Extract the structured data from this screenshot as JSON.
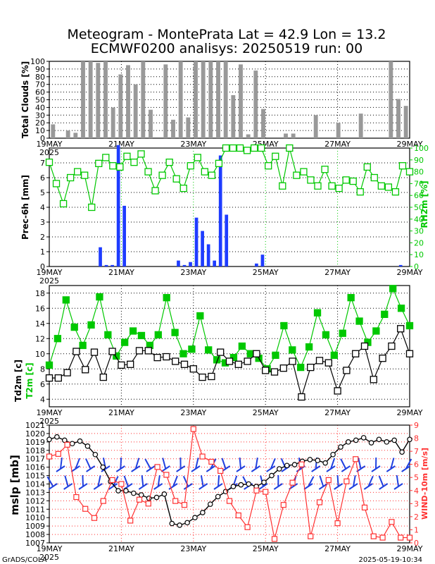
{
  "title_line1": "Meteogram - MontePrata Lat = 42.9 Lon = 13.2",
  "title_line2": "ECMWF0200 analisys: 20250519 run: 00",
  "footer_left": "GrADS/COLA",
  "footer_right": "2025-05-19-10:34",
  "colors": {
    "green": "#00c800",
    "blue": "#1e3cff",
    "red": "#ff3030",
    "grey": "#999999",
    "dblue": "#2040e0"
  },
  "x_ticks": [
    "19MAY",
    "21MAY",
    "23MAY",
    "25MAY",
    "27MAY",
    "29MAY"
  ],
  "year_label": "2025",
  "chart_data": [
    {
      "type": "bar",
      "ylabel": "Total Clouds [%]",
      "ylim": [
        0,
        100
      ],
      "y_ticks": [
        0,
        10,
        20,
        30,
        40,
        50,
        60,
        70,
        80,
        90,
        100
      ],
      "values": [
        18,
        0,
        10,
        7,
        100,
        100,
        98,
        100,
        40,
        83,
        95,
        70,
        100,
        37,
        0,
        96,
        24,
        100,
        27,
        100,
        100,
        100,
        100,
        100,
        56,
        96,
        5,
        88,
        38,
        0,
        0,
        6,
        6,
        0,
        0,
        30,
        0,
        0,
        20,
        0,
        0,
        32,
        0,
        0,
        0,
        100,
        51,
        42
      ]
    },
    {
      "type": "bar",
      "ylabel": "Prec-6h [mm]",
      "ylim": [
        0,
        8
      ],
      "y_ticks": [
        0,
        1,
        2,
        3,
        4,
        5,
        6,
        7
      ],
      "values": [
        0,
        0,
        0,
        0,
        0,
        0,
        0,
        0,
        1.3,
        0.1,
        0.1,
        8.2,
        4.1,
        0,
        0,
        0,
        0,
        0,
        0,
        0,
        0,
        0.4,
        0.1,
        0.3,
        3.3,
        2.4,
        1.5,
        0.4,
        7.5,
        3.5,
        0,
        0,
        0,
        0,
        0.2,
        0.8,
        0,
        0,
        0,
        0,
        0,
        0,
        0,
        0,
        0,
        0,
        0,
        0,
        0,
        0,
        0,
        0,
        0,
        0,
        0,
        0,
        0,
        0,
        0.1,
        0
      ],
      "y2label": "RH2m [%]",
      "y2lim": [
        0,
        100
      ],
      "y2_ticks": [
        0,
        10,
        20,
        30,
        40,
        50,
        60,
        70,
        80,
        90,
        100
      ],
      "rh_values": [
        88,
        70,
        53,
        75,
        80,
        77,
        50,
        87,
        92,
        85,
        84,
        93,
        88,
        95,
        80,
        64,
        77,
        88,
        74,
        66,
        85,
        92,
        80,
        77,
        87,
        100,
        100,
        100,
        98,
        100,
        100,
        85,
        93,
        68,
        100,
        77,
        80,
        73,
        68,
        82,
        68,
        66,
        73,
        72,
        63,
        84,
        75,
        68,
        67,
        63,
        85,
        80
      ]
    },
    {
      "type": "line",
      "ylabel": "Td2m [c]",
      "y2label": "T2m [c]",
      "ylim": [
        3,
        19
      ],
      "y_ticks": [
        4,
        6,
        8,
        10,
        12,
        14,
        16,
        18
      ],
      "series": [
        {
          "name": "T2m [c]",
          "values": [
            8.5,
            12,
            17.1,
            13.5,
            11.1,
            13.8,
            17.5,
            12.5,
            9.7,
            11.5,
            13,
            12.4,
            11.1,
            12.5,
            17.4,
            12.8,
            10,
            10.6,
            15,
            10.5,
            9.2,
            8.8,
            9.5,
            11,
            10,
            9.4,
            8,
            9.8,
            13.7,
            10.5,
            8.2,
            10.9,
            15.4,
            12.5,
            9.8,
            12.7,
            17.4,
            14.3,
            11.5,
            13,
            15.2,
            18.6,
            16,
            13.7
          ]
        },
        {
          "name": "Td2m [c]",
          "values": [
            6.8,
            6.8,
            7.5,
            10.3,
            7.9,
            10.2,
            6.9,
            10.3,
            8.5,
            8.6,
            10.4,
            10.4,
            9.5,
            9.6,
            9,
            8.6,
            8,
            6.9,
            7,
            10.2,
            9,
            8.6,
            9,
            10,
            7.8,
            7.6,
            8.1,
            9,
            4.3,
            8.2,
            9.1,
            8.8,
            5.1,
            7.8,
            10,
            11,
            6.6,
            9.4,
            11,
            13.3,
            10
          ]
        }
      ]
    },
    {
      "type": "line",
      "ylabel": "mslp [mb]",
      "y2label": "WIND-10m [m/s]",
      "ylim": [
        1007,
        1021
      ],
      "y_ticks": [
        1007,
        1008,
        1009,
        1010,
        1011,
        1012,
        1013,
        1014,
        1015,
        1016,
        1017,
        1018,
        1019,
        1020,
        1021
      ],
      "y2lim": [
        0,
        9
      ],
      "y2_ticks": [
        0,
        1,
        2,
        3,
        4,
        5,
        6,
        7,
        8,
        9
      ],
      "series": [
        {
          "name": "mslp [mb]",
          "values": [
            1019.3,
            1019.6,
            1019.2,
            1018.8,
            1019.1,
            1018.5,
            1017.5,
            1016,
            1014.3,
            1013.2,
            1013.2,
            1012.9,
            1012.7,
            1012.3,
            1012.4,
            1012.8,
            1009.3,
            1009.1,
            1009.4,
            1010,
            1010.6,
            1011.6,
            1012.5,
            1013.1,
            1013.7,
            1013.9,
            1014,
            1013.7,
            1014.2,
            1015,
            1015.8,
            1016.2,
            1016.3,
            1016.7,
            1016.9,
            1016.8,
            1016.5,
            1017.5,
            1018.4,
            1019,
            1019.2,
            1019.5,
            1018.9,
            1019.3,
            1019,
            1019.2,
            1017.8,
            1019.3
          ]
        },
        {
          "name": "WIND-10m [m/s]",
          "values": [
            6.6,
            6.8,
            7.5,
            3.5,
            2.6,
            1.9,
            3.2,
            4.8,
            4.5,
            1.7,
            3.3,
            3,
            5.8,
            5.2,
            3.2,
            2.9,
            8.7,
            6.6,
            6.2,
            5.5,
            3.2,
            2.1,
            1.2,
            4,
            3.9,
            0.3,
            2.9,
            4.6,
            6,
            0.5,
            3.1,
            4.8,
            1.5,
            4.7,
            6.4,
            2.7,
            0.5,
            0.4,
            1.6,
            0.4,
            0.4
          ]
        }
      ]
    }
  ]
}
